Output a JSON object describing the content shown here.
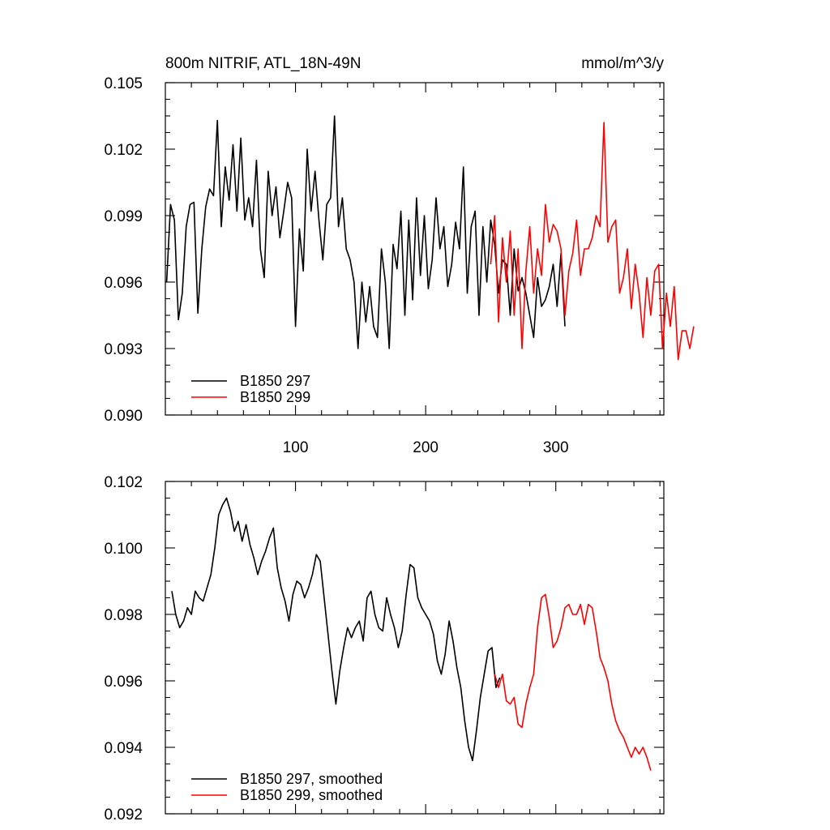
{
  "header": {
    "title": "800m NITRIF, ATL_18N-49N",
    "units": "mmol/m^3/y"
  },
  "colors": {
    "series_297": "#000000",
    "series_299": "#ff0000"
  },
  "chart_data": [
    {
      "type": "line",
      "panel": "raw",
      "title": "800m NITRIF, ATL_18N-49N",
      "units": "mmol/m^3/y",
      "xlim": [
        0,
        383
      ],
      "ylim": [
        0.09,
        0.105
      ],
      "xticks": [
        100,
        200,
        300
      ],
      "xtick_labels": [
        "100",
        "200",
        "300"
      ],
      "yticks": [
        0.09,
        0.093,
        0.096,
        0.099,
        0.102,
        0.105
      ],
      "ytick_labels": [
        "0.090",
        "0.093",
        "0.096",
        "0.099",
        "0.102",
        "0.105"
      ],
      "legend": "bottom-left",
      "series": [
        {
          "name": "B1850 297",
          "color": "#000000",
          "x0": 1,
          "step": 3,
          "values": [
            0.096,
            0.0995,
            0.0988,
            0.0943,
            0.0955,
            0.0985,
            0.0995,
            0.0996,
            0.0946,
            0.0975,
            0.0994,
            0.1002,
            0.0999,
            0.1033,
            0.0985,
            0.1012,
            0.0997,
            0.1022,
            0.0992,
            0.1025,
            0.0988,
            0.0998,
            0.0985,
            0.1015,
            0.0975,
            0.0962,
            0.101,
            0.099,
            0.1003,
            0.098,
            0.0992,
            0.1005,
            0.0998,
            0.094,
            0.0984,
            0.0965,
            0.102,
            0.0992,
            0.101,
            0.0988,
            0.097,
            0.0995,
            0.0998,
            0.1035,
            0.0985,
            0.0998,
            0.0975,
            0.097,
            0.096,
            0.093,
            0.096,
            0.0942,
            0.0958,
            0.094,
            0.0935,
            0.0975,
            0.096,
            0.093,
            0.0977,
            0.0966,
            0.0992,
            0.0945,
            0.0988,
            0.0952,
            0.0998,
            0.0963,
            0.099,
            0.0957,
            0.097,
            0.0998,
            0.0975,
            0.0985,
            0.0958,
            0.0968,
            0.0987,
            0.0975,
            0.1012,
            0.0955,
            0.0985,
            0.0992,
            0.0945,
            0.0985,
            0.096,
            0.0988,
            0.0977,
            0.0955,
            0.097,
            0.0968,
            0.0945,
            0.0975,
            0.0956,
            0.0962,
            0.0955,
            0.0945,
            0.0935,
            0.0962,
            0.0949,
            0.0952,
            0.0958,
            0.0968,
            0.0949,
            0.0973,
            0.094
          ]
        },
        {
          "name": "B1850 299",
          "color": "#ff0000",
          "x0": 250,
          "step": 3,
          "values": [
            0.0968,
            0.099,
            0.0942,
            0.098,
            0.096,
            0.0983,
            0.0945,
            0.0975,
            0.093,
            0.0965,
            0.0985,
            0.0955,
            0.0975,
            0.0963,
            0.0995,
            0.0978,
            0.0986,
            0.0983,
            0.0975,
            0.0945,
            0.0965,
            0.0973,
            0.0988,
            0.0963,
            0.0975,
            0.0975,
            0.098,
            0.099,
            0.0985,
            0.1032,
            0.0978,
            0.0985,
            0.0988,
            0.0955,
            0.0962,
            0.0975,
            0.0948,
            0.0968,
            0.0955,
            0.0935,
            0.0962,
            0.0945,
            0.0965,
            0.0968,
            0.093,
            0.0955,
            0.094,
            0.0958,
            0.0925,
            0.0938,
            0.0938,
            0.093,
            0.094
          ]
        }
      ]
    },
    {
      "type": "line",
      "panel": "smoothed",
      "xlim": [
        0,
        383
      ],
      "ylim": [
        0.092,
        0.102
      ],
      "xticks": [
        100,
        200,
        300
      ],
      "yticks": [
        0.092,
        0.094,
        0.096,
        0.098,
        0.1,
        0.102
      ],
      "ytick_labels": [
        "0.092",
        "0.094",
        "0.096",
        "0.098",
        "0.100",
        "0.102"
      ],
      "legend": "bottom-left",
      "series": [
        {
          "name": "B1850 297, smoothed",
          "color": "#000000",
          "x0": 5,
          "step": 3,
          "values": [
            0.0987,
            0.098,
            0.0976,
            0.0978,
            0.0982,
            0.098,
            0.0987,
            0.0985,
            0.0984,
            0.0988,
            0.0992,
            0.1,
            0.101,
            0.1013,
            0.1015,
            0.1011,
            0.1005,
            0.1008,
            0.1002,
            0.1007,
            0.1001,
            0.0997,
            0.0992,
            0.0996,
            0.0999,
            0.1003,
            0.1006,
            0.0994,
            0.0988,
            0.0984,
            0.0978,
            0.0986,
            0.099,
            0.0989,
            0.0985,
            0.0988,
            0.0992,
            0.0998,
            0.0996,
            0.0985,
            0.0974,
            0.0963,
            0.0953,
            0.0963,
            0.097,
            0.0976,
            0.0973,
            0.0976,
            0.0978,
            0.0972,
            0.0985,
            0.0987,
            0.098,
            0.0976,
            0.0975,
            0.0985,
            0.098,
            0.0976,
            0.097,
            0.0975,
            0.0986,
            0.0995,
            0.0994,
            0.0985,
            0.0982,
            0.098,
            0.0978,
            0.0974,
            0.0966,
            0.0962,
            0.0968,
            0.0978,
            0.0972,
            0.0964,
            0.0958,
            0.0948,
            0.094,
            0.0936,
            0.0945,
            0.0955,
            0.0962,
            0.0969,
            0.097,
            0.0958,
            0.0961
          ]
        },
        {
          "name": "B1850 299, smoothed",
          "color": "#ff0000",
          "x0": 253,
          "step": 3,
          "values": [
            0.0962,
            0.0958,
            0.0962,
            0.0954,
            0.0953,
            0.0955,
            0.0947,
            0.0946,
            0.0953,
            0.0958,
            0.0962,
            0.0976,
            0.0985,
            0.0986,
            0.0979,
            0.097,
            0.0972,
            0.0976,
            0.0982,
            0.0983,
            0.098,
            0.098,
            0.0983,
            0.0977,
            0.0983,
            0.0982,
            0.0975,
            0.0967,
            0.0964,
            0.096,
            0.0953,
            0.0948,
            0.0945,
            0.0943,
            0.094,
            0.0937,
            0.094,
            0.0938,
            0.094,
            0.0937,
            0.0933
          ]
        }
      ]
    }
  ]
}
